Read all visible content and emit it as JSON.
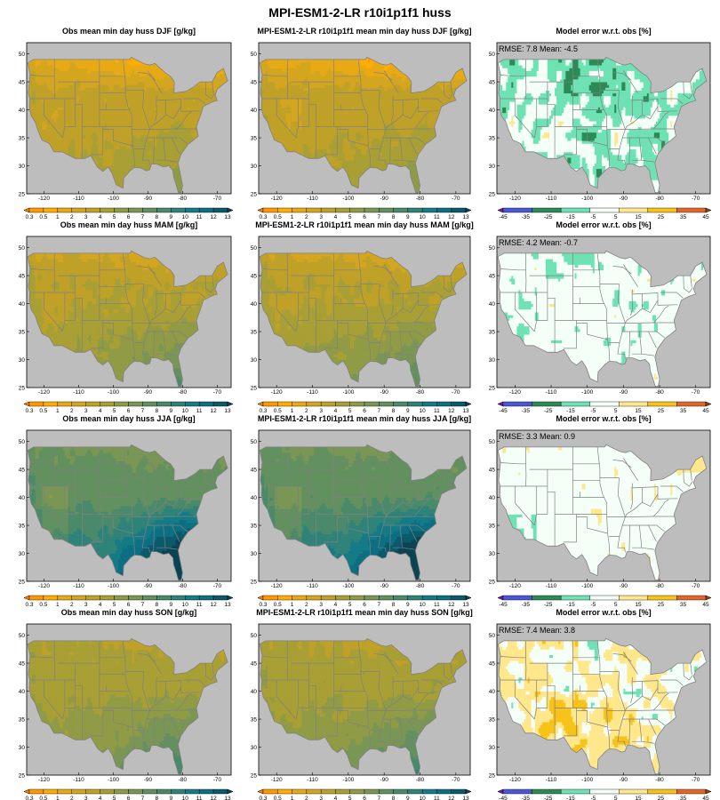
{
  "figure": {
    "title": "MPI-ESM1-2-LR r10i1p1f1 huss"
  },
  "colors": {
    "background_gray": "#bdbdbd",
    "state_lines": "#808080",
    "obs_palette": [
      "#ff7f00",
      "#ff9900",
      "#ffad00",
      "#e8aa14",
      "#d4a620",
      "#c0a128",
      "#a89f35",
      "#909b45",
      "#7a9655",
      "#62905f",
      "#4a8a6b",
      "#2f8379",
      "#157b86",
      "#0c6f82",
      "#0b5a6c",
      "#0a4454"
    ],
    "err_palette": [
      "#7a0fb5",
      "#4c57d1",
      "#2c8a56",
      "#6fe2b4",
      "#f4fff8",
      "#ffe78c",
      "#f7c21a",
      "#e0662c",
      "#8b4513"
    ]
  },
  "chart_data": [
    {
      "type": "heatmap",
      "title": "Obs mean min day  huss DJF [g/kg]",
      "season": "DJF",
      "kind": "obs",
      "xticks": [
        "-120",
        "-110",
        "-100",
        "-90",
        "-80",
        "-70"
      ],
      "yticks": [
        "25",
        "30",
        "35",
        "40",
        "45",
        "50"
      ],
      "xlim": [
        -125,
        -66
      ],
      "ylim": [
        25,
        52
      ],
      "colorbar_ticks": [
        "0.3",
        "0.5",
        "1",
        "2",
        "3",
        "4",
        "5",
        "6",
        "7",
        "8",
        "9",
        "10",
        "11",
        "12",
        "13"
      ],
      "field": {
        "base": 3.4,
        "north_drop": 3.0,
        "south_gain": 1.0,
        "southeast_gain": 1.0
      }
    },
    {
      "type": "heatmap",
      "title": "MPI-ESM1-2-LR r10i1p1f1 mean min day huss DJF [g/kg]",
      "season": "DJF",
      "kind": "model",
      "xticks": [
        "-120",
        "-110",
        "-100",
        "-90",
        "-80",
        "-70"
      ],
      "yticks": [
        "25",
        "30",
        "35",
        "40",
        "45",
        "50"
      ],
      "xlim": [
        -125,
        -66
      ],
      "ylim": [
        25,
        52
      ],
      "colorbar_ticks": [
        "0.3",
        "0.5",
        "1",
        "2",
        "3",
        "4",
        "5",
        "6",
        "7",
        "8",
        "9",
        "10",
        "11",
        "12",
        "13"
      ],
      "field": {
        "base": 3.4,
        "north_drop": 3.1,
        "south_gain": 1.0,
        "southeast_gain": 1.0
      }
    },
    {
      "type": "heatmap",
      "title": "Model error w.r.t. obs [%]",
      "season": "DJF",
      "kind": "error",
      "annotation": "RMSE: 7.8   Mean: -4.5",
      "rmse": 7.8,
      "mean": -4.5,
      "xticks": [
        "-120",
        "-110",
        "-100",
        "-90",
        "-80",
        "-70"
      ],
      "yticks": [
        "25",
        "30",
        "35",
        "40",
        "45",
        "50"
      ],
      "xlim": [
        -125,
        -66
      ],
      "ylim": [
        25,
        52
      ],
      "colorbar_ticks": [
        "-45",
        "-35",
        "-25",
        "-15",
        "-5",
        "5",
        "15",
        "25",
        "35",
        "45"
      ]
    },
    {
      "type": "heatmap",
      "title": "Obs mean min day  huss MAM [g/kg]",
      "season": "MAM",
      "kind": "obs",
      "xticks": [
        "-120",
        "-110",
        "-100",
        "-90",
        "-80",
        "-70"
      ],
      "yticks": [
        "25",
        "30",
        "35",
        "40",
        "45",
        "50"
      ],
      "xlim": [
        -125,
        -66
      ],
      "ylim": [
        25,
        52
      ],
      "colorbar_ticks": [
        "0.3",
        "0.5",
        "1",
        "2",
        "3",
        "4",
        "5",
        "6",
        "7",
        "8",
        "9",
        "10",
        "11",
        "12",
        "13"
      ],
      "field": {
        "base": 4.0,
        "north_drop": 1.6,
        "south_gain": 1.6,
        "southeast_gain": 2.0
      }
    },
    {
      "type": "heatmap",
      "title": "MPI-ESM1-2-LR r10i1p1f1 mean min day huss MAM [g/kg]",
      "season": "MAM",
      "kind": "model",
      "xticks": [
        "-120",
        "-110",
        "-100",
        "-90",
        "-80",
        "-70"
      ],
      "yticks": [
        "25",
        "30",
        "35",
        "40",
        "45",
        "50"
      ],
      "xlim": [
        -125,
        -66
      ],
      "ylim": [
        25,
        52
      ],
      "colorbar_ticks": [
        "0.3",
        "0.5",
        "1",
        "2",
        "3",
        "4",
        "5",
        "6",
        "7",
        "8",
        "9",
        "10",
        "11",
        "12",
        "13"
      ],
      "field": {
        "base": 4.0,
        "north_drop": 1.6,
        "south_gain": 1.6,
        "southeast_gain": 2.0
      }
    },
    {
      "type": "heatmap",
      "title": "Model error w.r.t. obs [%]",
      "season": "MAM",
      "kind": "error",
      "annotation": "RMSE: 4.2   Mean: -0.7",
      "rmse": 4.2,
      "mean": -0.7,
      "xticks": [
        "-120",
        "-110",
        "-100",
        "-90",
        "-80",
        "-70"
      ],
      "yticks": [
        "25",
        "30",
        "35",
        "40",
        "45",
        "50"
      ],
      "xlim": [
        -125,
        -66
      ],
      "ylim": [
        25,
        52
      ],
      "colorbar_ticks": [
        "-45",
        "-35",
        "-25",
        "-15",
        "-5",
        "5",
        "15",
        "25",
        "35",
        "45"
      ]
    },
    {
      "type": "heatmap",
      "title": "Obs mean min day  huss JJA [g/kg]",
      "season": "JJA",
      "kind": "obs",
      "xticks": [
        "-120",
        "-110",
        "-100",
        "-90",
        "-80",
        "-70"
      ],
      "yticks": [
        "25",
        "30",
        "35",
        "40",
        "45",
        "50"
      ],
      "xlim": [
        -125,
        -66
      ],
      "ylim": [
        25,
        52
      ],
      "colorbar_ticks": [
        "0.3",
        "0.5",
        "1",
        "2",
        "3",
        "4",
        "5",
        "6",
        "7",
        "8",
        "9",
        "10",
        "11",
        "12",
        "13"
      ],
      "field": {
        "base": 7.5,
        "north_drop": 1.0,
        "south_gain": 3.0,
        "southeast_gain": 6.5
      }
    },
    {
      "type": "heatmap",
      "title": "MPI-ESM1-2-LR r10i1p1f1 mean min day huss JJA [g/kg]",
      "season": "JJA",
      "kind": "model",
      "xticks": [
        "-120",
        "-110",
        "-100",
        "-90",
        "-80",
        "-70"
      ],
      "yticks": [
        "25",
        "30",
        "35",
        "40",
        "45",
        "50"
      ],
      "xlim": [
        -125,
        -66
      ],
      "ylim": [
        25,
        52
      ],
      "colorbar_ticks": [
        "0.3",
        "0.5",
        "1",
        "2",
        "3",
        "4",
        "5",
        "6",
        "7",
        "8",
        "9",
        "10",
        "11",
        "12",
        "13"
      ],
      "field": {
        "base": 7.6,
        "north_drop": 1.0,
        "south_gain": 3.0,
        "southeast_gain": 6.3
      }
    },
    {
      "type": "heatmap",
      "title": "Model error w.r.t. obs [%]",
      "season": "JJA",
      "kind": "error",
      "annotation": "RMSE: 3.3   Mean: 0.9",
      "rmse": 3.3,
      "mean": 0.9,
      "xticks": [
        "-120",
        "-110",
        "-100",
        "-90",
        "-80",
        "-70"
      ],
      "yticks": [
        "25",
        "30",
        "35",
        "40",
        "45",
        "50"
      ],
      "xlim": [
        -125,
        -66
      ],
      "ylim": [
        25,
        52
      ],
      "colorbar_ticks": [
        "-45",
        "-35",
        "-25",
        "-15",
        "-5",
        "5",
        "15",
        "25",
        "35",
        "45"
      ]
    },
    {
      "type": "heatmap",
      "title": "Obs mean min day  huss SON [g/kg]",
      "season": "SON",
      "kind": "obs",
      "xticks": [
        "-120",
        "-110",
        "-100",
        "-90",
        "-80",
        "-70"
      ],
      "yticks": [
        "25",
        "30",
        "35",
        "40",
        "45",
        "50"
      ],
      "xlim": [
        -125,
        -66
      ],
      "ylim": [
        25,
        52
      ],
      "colorbar_ticks": [
        "0.3",
        "0.5",
        "1",
        "2",
        "3",
        "4",
        "5",
        "6",
        "7",
        "8",
        "9",
        "10",
        "11",
        "12",
        "13"
      ],
      "field": {
        "base": 4.6,
        "north_drop": 0.9,
        "south_gain": 1.6,
        "southeast_gain": 2.6
      }
    },
    {
      "type": "heatmap",
      "title": "MPI-ESM1-2-LR r10i1p1f1 mean min day huss SON [g/kg]",
      "season": "SON",
      "kind": "model",
      "xticks": [
        "-120",
        "-110",
        "-100",
        "-90",
        "-80",
        "-70"
      ],
      "yticks": [
        "25",
        "30",
        "35",
        "40",
        "45",
        "50"
      ],
      "xlim": [
        -125,
        -66
      ],
      "ylim": [
        25,
        52
      ],
      "colorbar_ticks": [
        "0.3",
        "0.5",
        "1",
        "2",
        "3",
        "4",
        "5",
        "6",
        "7",
        "8",
        "9",
        "10",
        "11",
        "12",
        "13"
      ],
      "field": {
        "base": 4.6,
        "north_drop": 0.9,
        "south_gain": 1.6,
        "southeast_gain": 2.6
      }
    },
    {
      "type": "heatmap",
      "title": "Model error w.r.t. obs [%]",
      "season": "SON",
      "kind": "error",
      "annotation": "RMSE: 7.4   Mean: 3.8",
      "rmse": 7.4,
      "mean": 3.8,
      "xticks": [
        "-120",
        "-110",
        "-100",
        "-90",
        "-80",
        "-70"
      ],
      "yticks": [
        "25",
        "30",
        "35",
        "40",
        "45",
        "50"
      ],
      "xlim": [
        -125,
        -66
      ],
      "ylim": [
        25,
        52
      ],
      "colorbar_ticks": [
        "-45",
        "-35",
        "-25",
        "-15",
        "-5",
        "5",
        "15",
        "25",
        "35",
        "45"
      ]
    }
  ]
}
